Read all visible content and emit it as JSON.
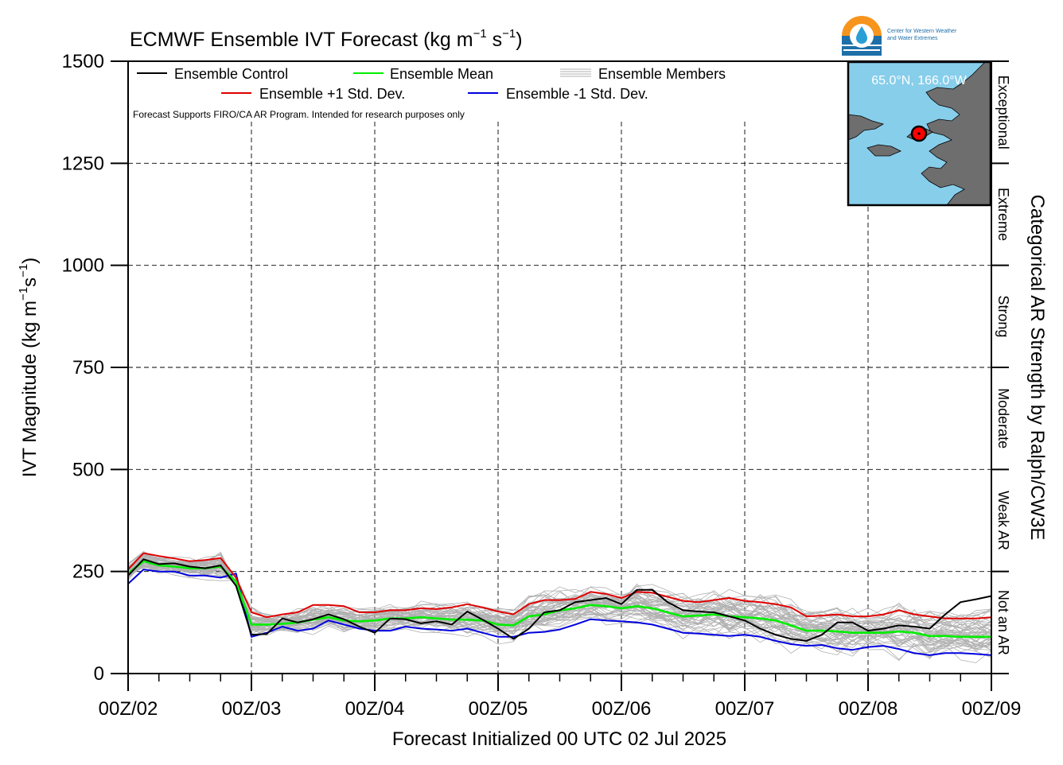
{
  "title": "ECMWF Ensemble IVT Forecast (kg m",
  "title_unit_tail": " s",
  "title_sup": "−1",
  "title_close": ")",
  "ylabel_main": "IVT Magnitude (kg m",
  "ylabel_s": "s",
  "ylabel_sup": "−1",
  "ylabel_close": ")",
  "xlabel": "Forecast Initialized 00 UTC 02 Jul 2025",
  "right_label": "Categorical AR Strength by Ralph/CW3E",
  "disclaimer": "Forecast Supports FIRO/CA AR Program. Intended for research purposes only",
  "logo": {
    "icon": "cw3e-water-drop-logo",
    "line1": "Center for Western Weather",
    "line2": "and Water Extremes",
    "colors": {
      "orange": "#f7941d",
      "blue": "#1e6fa8",
      "teal": "#2a9fd6"
    }
  },
  "inset": {
    "location": "65.0°N, 166.0°W",
    "lat": 65.0,
    "lon": -166.0,
    "ocean_color": "#87ceeb",
    "land_color": "#6e6e6e",
    "marker_color": "#ff0000"
  },
  "legend": {
    "items": [
      {
        "label": "Ensemble Control",
        "color": "#000000"
      },
      {
        "label": "Ensemble Mean",
        "color": "#00ee00"
      },
      {
        "label": "Ensemble Members",
        "color": "#b0b0b0"
      },
      {
        "label": "Ensemble +1 Std. Dev.",
        "color": "#e00000"
      },
      {
        "label": "Ensemble -1 Std. Dev.",
        "color": "#0000e0"
      }
    ]
  },
  "categories": [
    {
      "label": "Not an AR",
      "from": 0,
      "to": 250
    },
    {
      "label": "Weak AR",
      "from": 250,
      "to": 500
    },
    {
      "label": "Moderate",
      "from": 500,
      "to": 750
    },
    {
      "label": "Strong",
      "from": 750,
      "to": 1000
    },
    {
      "label": "Extreme",
      "from": 1000,
      "to": 1250
    },
    {
      "label": "Exceptional",
      "from": 1250,
      "to": 1500
    }
  ],
  "chart_data": {
    "type": "line",
    "xlabel": "Forecast Initialized 00 UTC 02 Jul 2025",
    "ylabel": "IVT Magnitude (kg m−1s−1)",
    "xlim_hours": [
      0,
      168
    ],
    "ylim": [
      0,
      1500
    ],
    "yticks": [
      0,
      250,
      500,
      750,
      1000,
      1250,
      1500
    ],
    "xtick_hours": [
      0,
      24,
      48,
      72,
      96,
      120,
      144,
      168
    ],
    "xtick_labels": [
      "00Z/02",
      "00Z/03",
      "00Z/04",
      "00Z/05",
      "00Z/06",
      "00Z/07",
      "00Z/08",
      "00Z/09"
    ],
    "grid": true,
    "legend_position": "top-left",
    "series": [
      {
        "name": "Ensemble Control",
        "color": "#000000",
        "x": [
          0,
          3,
          6,
          9,
          12,
          15,
          18,
          21,
          24,
          27,
          30,
          33,
          36,
          39,
          42,
          45,
          48,
          51,
          54,
          57,
          60,
          63,
          66,
          69,
          72,
          75,
          78,
          81,
          84,
          87,
          90,
          93,
          96,
          99,
          102,
          105,
          108,
          111,
          114,
          117,
          120,
          123,
          126,
          129,
          132,
          135,
          138,
          141,
          144,
          147,
          150,
          153,
          156,
          159,
          162,
          165,
          168
        ],
        "values": [
          240,
          280,
          268,
          270,
          262,
          258,
          265,
          215,
          95,
          97,
          135,
          125,
          133,
          145,
          133,
          115,
          100,
          135,
          133,
          123,
          128,
          120,
          152,
          132,
          110,
          85,
          110,
          150,
          155,
          175,
          180,
          185,
          170,
          205,
          205,
          175,
          155,
          152,
          150,
          140,
          130,
          110,
          95,
          85,
          80,
          95,
          125,
          125,
          105,
          110,
          118,
          115,
          110,
          145,
          175,
          182,
          190
        ]
      },
      {
        "name": "Ensemble Mean",
        "color": "#00ee00",
        "x": [
          0,
          3,
          6,
          9,
          12,
          15,
          18,
          21,
          24,
          27,
          30,
          33,
          36,
          39,
          42,
          45,
          48,
          51,
          54,
          57,
          60,
          63,
          66,
          69,
          72,
          75,
          78,
          81,
          84,
          87,
          90,
          93,
          96,
          99,
          102,
          105,
          108,
          111,
          114,
          117,
          120,
          123,
          126,
          129,
          132,
          135,
          138,
          141,
          144,
          147,
          150,
          153,
          156,
          159,
          162,
          165,
          168
        ],
        "values": [
          245,
          275,
          265,
          262,
          258,
          258,
          262,
          225,
          120,
          120,
          122,
          125,
          132,
          138,
          130,
          128,
          130,
          135,
          135,
          138,
          135,
          132,
          132,
          130,
          120,
          118,
          140,
          145,
          155,
          160,
          168,
          165,
          160,
          165,
          160,
          150,
          140,
          142,
          145,
          140,
          138,
          135,
          130,
          118,
          105,
          105,
          103,
          100,
          100,
          100,
          103,
          100,
          92,
          92,
          90,
          90,
          90
        ]
      },
      {
        "name": "Ensemble +1 Std. Dev.",
        "color": "#e00000",
        "x": [
          0,
          3,
          6,
          9,
          12,
          15,
          18,
          21,
          24,
          27,
          30,
          33,
          36,
          39,
          42,
          45,
          48,
          51,
          54,
          57,
          60,
          63,
          66,
          69,
          72,
          75,
          78,
          81,
          84,
          87,
          90,
          93,
          96,
          99,
          102,
          105,
          108,
          111,
          114,
          117,
          120,
          123,
          126,
          129,
          132,
          135,
          138,
          141,
          144,
          147,
          150,
          153,
          156,
          159,
          162,
          165,
          168
        ],
        "values": [
          255,
          295,
          288,
          282,
          275,
          278,
          283,
          235,
          150,
          138,
          145,
          150,
          168,
          168,
          165,
          150,
          150,
          155,
          155,
          160,
          158,
          162,
          170,
          162,
          152,
          145,
          170,
          180,
          180,
          183,
          200,
          195,
          185,
          200,
          198,
          188,
          178,
          175,
          180,
          185,
          178,
          175,
          170,
          162,
          140,
          142,
          145,
          140,
          140,
          145,
          155,
          145,
          140,
          135,
          135,
          135,
          138
        ]
      },
      {
        "name": "Ensemble -1 Std. Dev.",
        "color": "#0000e0",
        "x": [
          0,
          3,
          6,
          9,
          12,
          15,
          18,
          21,
          24,
          27,
          30,
          33,
          36,
          39,
          42,
          45,
          48,
          51,
          54,
          57,
          60,
          63,
          66,
          69,
          72,
          75,
          78,
          81,
          84,
          87,
          90,
          93,
          96,
          99,
          102,
          105,
          108,
          111,
          114,
          117,
          120,
          123,
          126,
          129,
          132,
          135,
          138,
          141,
          144,
          147,
          150,
          153,
          156,
          159,
          162,
          165,
          168
        ],
        "values": [
          220,
          255,
          250,
          250,
          240,
          240,
          235,
          245,
          90,
          100,
          115,
          105,
          110,
          130,
          120,
          110,
          105,
          105,
          115,
          110,
          108,
          105,
          110,
          100,
          90,
          90,
          100,
          102,
          108,
          120,
          133,
          130,
          128,
          125,
          120,
          110,
          100,
          98,
          95,
          92,
          95,
          90,
          80,
          72,
          68,
          70,
          62,
          58,
          65,
          68,
          60,
          50,
          45,
          50,
          50,
          48,
          45
        ]
      }
    ],
    "members": {
      "name": "Ensemble Members",
      "color": "#b0b0b0",
      "count": 50,
      "spread": "grey band around the ensemble mean, roughly 20 to 340 kg m−1 s−1"
    }
  }
}
